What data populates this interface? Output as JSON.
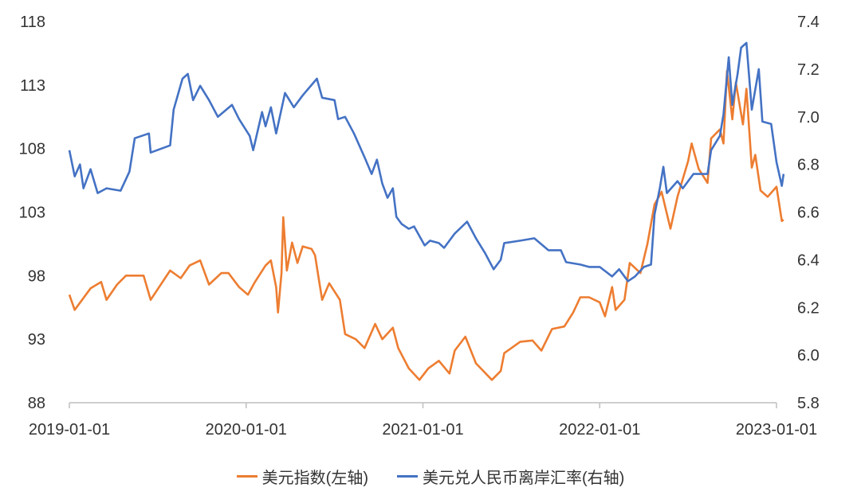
{
  "chart_data": {
    "type": "line",
    "title": "",
    "x_unit": "decimal year",
    "xlim": [
      2019.0,
      2023.0
    ],
    "x_ticks": [
      "2019-01-01",
      "2020-01-01",
      "2021-01-01",
      "2022-01-01",
      "2023-01-01"
    ],
    "y_left": {
      "ylim": [
        88,
        118
      ],
      "ticks": [
        "88",
        "93",
        "98",
        "103",
        "108",
        "113",
        "118"
      ]
    },
    "y_right": {
      "ylim": [
        5.8,
        7.4
      ],
      "ticks": [
        "5.8",
        "6.0",
        "6.2",
        "6.4",
        "6.6",
        "6.8",
        "7.0",
        "7.2",
        "7.4"
      ]
    },
    "grid": false,
    "legend_position": "bottom",
    "series": [
      {
        "name": "美元指数(左轴)",
        "axis": "left",
        "color": "#ED7D31",
        "x": [
          2019.0,
          2019.03,
          2019.12,
          2019.18,
          2019.21,
          2019.27,
          2019.32,
          2019.42,
          2019.46,
          2019.57,
          2019.63,
          2019.68,
          2019.74,
          2019.79,
          2019.86,
          2019.9,
          2019.96,
          2020.01,
          2020.05,
          2020.11,
          2020.14,
          2020.17,
          2020.18,
          2020.2,
          2020.21,
          2020.23,
          2020.26,
          2020.29,
          2020.32,
          2020.37,
          2020.39,
          2020.41,
          2020.43,
          2020.47,
          2020.53,
          2020.56,
          2020.62,
          2020.67,
          2020.73,
          2020.77,
          2020.83,
          2020.86,
          2020.92,
          2020.98,
          2021.03,
          2021.09,
          2021.15,
          2021.18,
          2021.24,
          2021.3,
          2021.39,
          2021.44,
          2021.46,
          2021.55,
          2021.62,
          2021.67,
          2021.73,
          2021.8,
          2021.85,
          2021.89,
          2021.94,
          2022.0,
          2022.03,
          2022.07,
          2022.09,
          2022.14,
          2022.17,
          2022.23,
          2022.27,
          2022.31,
          2022.35,
          2022.4,
          2022.44,
          2022.5,
          2022.52,
          2022.56,
          2022.61,
          2022.63,
          2022.68,
          2022.7,
          2022.72,
          2022.75,
          2022.77,
          2022.81,
          2022.83,
          2022.86,
          2022.88,
          2022.91,
          2022.95,
          2023.0,
          2023.03,
          2023.04
        ],
        "values": [
          96.5,
          95.3,
          97.0,
          97.5,
          96.1,
          97.3,
          98.0,
          98.0,
          96.1,
          98.4,
          97.8,
          98.8,
          99.2,
          97.3,
          98.2,
          98.2,
          97.1,
          96.5,
          97.5,
          98.8,
          99.2,
          97.1,
          95.1,
          98.2,
          102.6,
          98.4,
          100.6,
          99.0,
          100.3,
          100.1,
          99.6,
          97.8,
          96.1,
          97.4,
          96.1,
          93.4,
          93.0,
          92.3,
          94.2,
          93.0,
          93.9,
          92.3,
          90.7,
          89.8,
          90.7,
          91.3,
          90.3,
          92.1,
          93.2,
          91.1,
          89.8,
          90.5,
          91.9,
          92.8,
          92.9,
          92.1,
          93.8,
          94.0,
          95.1,
          96.3,
          96.3,
          95.9,
          94.8,
          97.1,
          95.3,
          96.1,
          99.0,
          98.2,
          100.5,
          103.6,
          104.6,
          101.7,
          104.2,
          107.0,
          108.4,
          106.4,
          105.3,
          108.8,
          109.5,
          108.4,
          114.1,
          110.3,
          113.2,
          109.9,
          112.7,
          106.5,
          107.5,
          104.7,
          104.2,
          105.0,
          102.3,
          102.4
        ]
      },
      {
        "name": "美元兑人民币离岸汇率(右轴)",
        "axis": "right",
        "color": "#4472C4",
        "x": [
          2019.0,
          2019.03,
          2019.06,
          2019.08,
          2019.12,
          2019.16,
          2019.21,
          2019.29,
          2019.34,
          2019.37,
          2019.45,
          2019.46,
          2019.57,
          2019.59,
          2019.64,
          2019.67,
          2019.7,
          2019.74,
          2019.79,
          2019.84,
          2019.92,
          2019.96,
          2020.02,
          2020.04,
          2020.09,
          2020.11,
          2020.14,
          2020.17,
          2020.22,
          2020.27,
          2020.32,
          2020.4,
          2020.43,
          2020.5,
          2020.52,
          2020.56,
          2020.61,
          2020.67,
          2020.71,
          2020.74,
          2020.77,
          2020.8,
          2020.83,
          2020.85,
          2020.88,
          2020.92,
          2020.95,
          2021.01,
          2021.04,
          2021.09,
          2021.12,
          2021.18,
          2021.25,
          2021.3,
          2021.35,
          2021.4,
          2021.44,
          2021.46,
          2021.55,
          2021.63,
          2021.71,
          2021.78,
          2021.81,
          2021.89,
          2021.94,
          2022.0,
          2022.07,
          2022.11,
          2022.16,
          2022.2,
          2022.25,
          2022.29,
          2022.31,
          2022.34,
          2022.36,
          2022.38,
          2022.44,
          2022.47,
          2022.53,
          2022.61,
          2022.63,
          2022.68,
          2022.7,
          2022.73,
          2022.75,
          2022.78,
          2022.8,
          2022.83,
          2022.86,
          2022.9,
          2022.92,
          2022.97,
          2023.0,
          2023.03,
          2023.04
        ],
        "values": [
          6.86,
          6.75,
          6.8,
          6.7,
          6.78,
          6.68,
          6.7,
          6.69,
          6.77,
          6.91,
          6.93,
          6.85,
          6.88,
          7.03,
          7.16,
          7.18,
          7.07,
          7.13,
          7.07,
          7.0,
          7.05,
          6.99,
          6.92,
          6.86,
          7.02,
          6.96,
          7.04,
          6.93,
          7.1,
          7.04,
          7.09,
          7.16,
          7.08,
          7.07,
          6.99,
          7.0,
          6.93,
          6.83,
          6.76,
          6.82,
          6.72,
          6.66,
          6.7,
          6.58,
          6.55,
          6.53,
          6.54,
          6.46,
          6.48,
          6.47,
          6.45,
          6.51,
          6.56,
          6.49,
          6.43,
          6.36,
          6.4,
          6.47,
          6.48,
          6.49,
          6.44,
          6.44,
          6.39,
          6.38,
          6.37,
          6.37,
          6.33,
          6.36,
          6.31,
          6.33,
          6.37,
          6.38,
          6.59,
          6.7,
          6.79,
          6.68,
          6.73,
          6.7,
          6.76,
          6.76,
          6.86,
          6.92,
          7.01,
          7.25,
          7.05,
          7.18,
          7.29,
          7.31,
          7.03,
          7.2,
          6.98,
          6.97,
          6.81,
          6.71,
          6.76
        ]
      }
    ]
  }
}
